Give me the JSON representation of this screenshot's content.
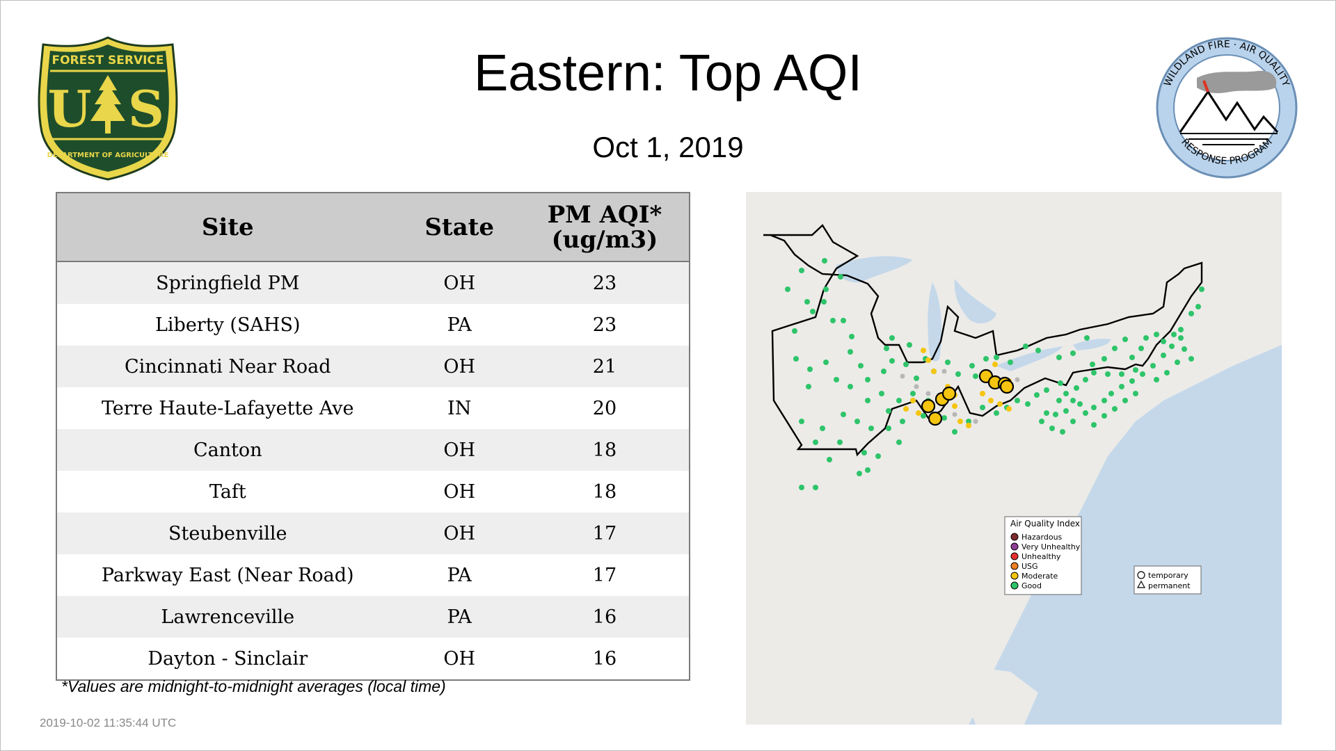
{
  "header": {
    "title": "Eastern: Top AQI",
    "date": "Oct  1, 2019"
  },
  "logos": {
    "forest_service": {
      "top_text": "FOREST SERVICE",
      "letters_left": "U",
      "letters_right": "S",
      "bottom_text": "DEPARTMENT OF AGRICULTURE"
    },
    "wildland_fire": {
      "top_text": "WILDLAND FIRE · AIR QUALITY",
      "bottom_text": "RESPONSE PROGRAM"
    }
  },
  "table": {
    "headers": {
      "site": "Site",
      "state": "State",
      "aqi_line1": "PM AQI*",
      "aqi_line2": "(ug/m3)"
    },
    "rows": [
      {
        "site": "Springfield PM",
        "state": "OH",
        "aqi": "23"
      },
      {
        "site": "Liberty (SAHS)",
        "state": "PA",
        "aqi": "23"
      },
      {
        "site": "Cincinnati Near Road",
        "state": "OH",
        "aqi": "21"
      },
      {
        "site": "Terre Haute-Lafayette Ave",
        "state": "IN",
        "aqi": "20"
      },
      {
        "site": "Canton",
        "state": "OH",
        "aqi": "18"
      },
      {
        "site": "Taft",
        "state": "OH",
        "aqi": "18"
      },
      {
        "site": "Steubenville",
        "state": "OH",
        "aqi": "17"
      },
      {
        "site": "Parkway East (Near Road)",
        "state": "PA",
        "aqi": "17"
      },
      {
        "site": "Lawrenceville",
        "state": "PA",
        "aqi": "16"
      },
      {
        "site": "Dayton - Sinclair",
        "state": "OH",
        "aqi": "16"
      }
    ]
  },
  "footnote": "*Values are midnight-to-midnight averages (local time)",
  "timestamp": "2019-10-02 11:35:44 UTC",
  "map": {
    "legend": {
      "title": "Air Quality Index",
      "items": [
        {
          "label": "Hazardous",
          "color": "#7e2b2b"
        },
        {
          "label": "Very Unhealthy",
          "color": "#8f3f97"
        },
        {
          "label": "Unhealthy",
          "color": "#e8312f"
        },
        {
          "label": "USG",
          "color": "#f07e22"
        },
        {
          "label": "Moderate",
          "color": "#f5c50f"
        },
        {
          "label": "Good",
          "color": "#2ec46a"
        }
      ],
      "shapes": [
        {
          "label": "temporary",
          "shape": "circle"
        },
        {
          "label": "permanent",
          "shape": "triangle"
        }
      ]
    },
    "colors": {
      "water": "#c4d8ea",
      "land": "#ecebe8",
      "good": "#2ec46a",
      "moderate": "#f5c50f",
      "missing": "#b7b7b7"
    }
  }
}
